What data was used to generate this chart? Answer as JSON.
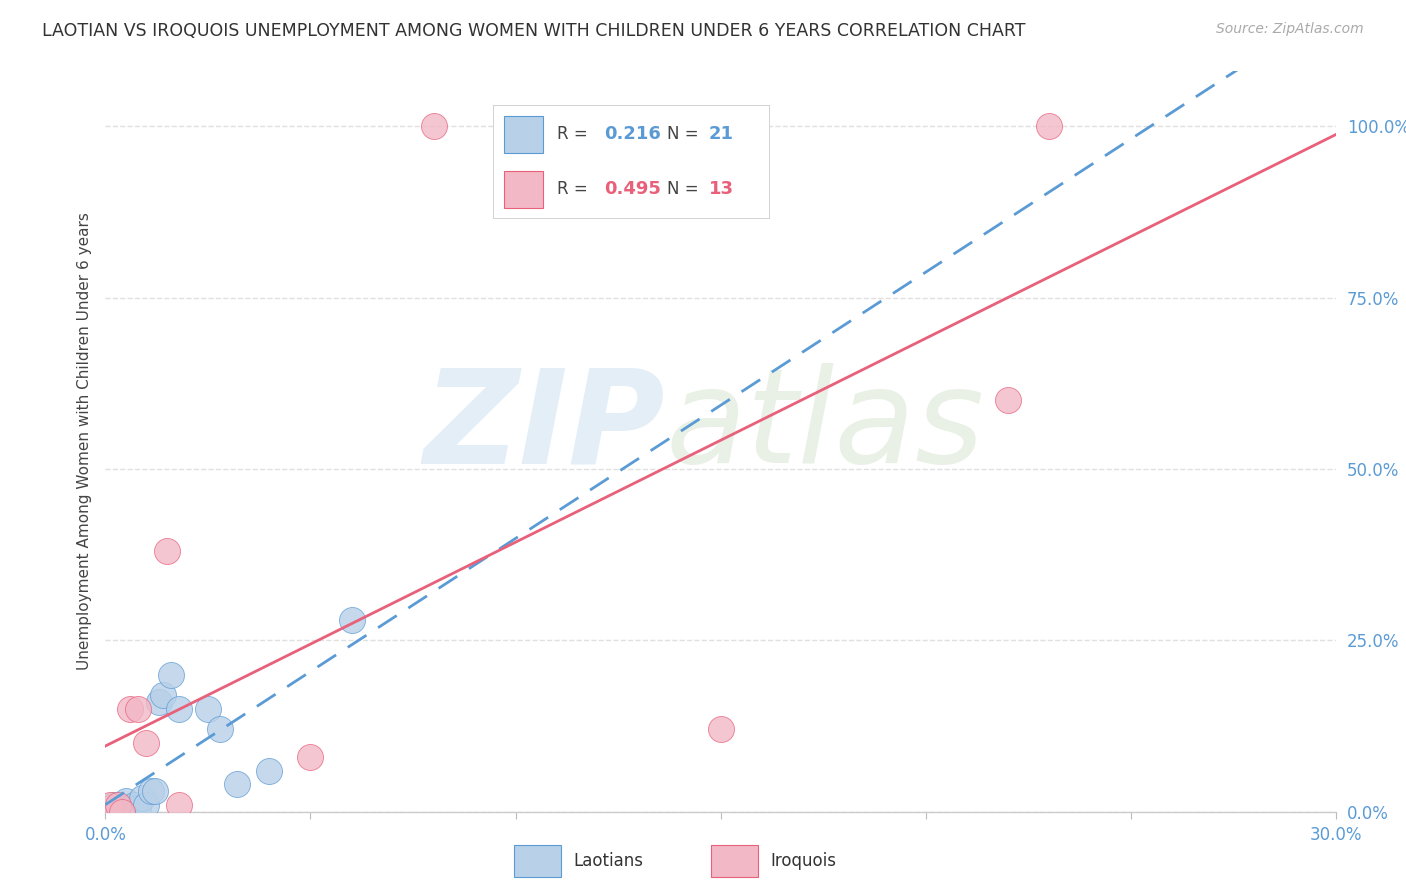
{
  "title": "LAOTIAN VS IROQUOIS UNEMPLOYMENT AMONG WOMEN WITH CHILDREN UNDER 6 YEARS CORRELATION CHART",
  "source": "Source: ZipAtlas.com",
  "ylabel": "Unemployment Among Women with Children Under 6 years",
  "xlim": [
    0.0,
    0.3
  ],
  "ylim": [
    0.0,
    1.08
  ],
  "xtick_vals": [
    0.0,
    0.05,
    0.1,
    0.15,
    0.2,
    0.25,
    0.3
  ],
  "ytick_vals": [
    0.0,
    0.25,
    0.5,
    0.75,
    1.0
  ],
  "ytick_labels": [
    "0.0%",
    "25.0%",
    "50.0%",
    "75.0%",
    "100.0%"
  ],
  "laotian_color": "#b8d0e8",
  "iroquois_color": "#f2b8c6",
  "laotian_line_color": "#5b9bd5",
  "iroquois_line_color": "#e8607a",
  "laotian_R": 0.216,
  "laotian_N": 21,
  "iroquois_R": 0.495,
  "iroquois_N": 13,
  "laotian_x": [
    0.001,
    0.002,
    0.003,
    0.004,
    0.005,
    0.006,
    0.007,
    0.008,
    0.009,
    0.01,
    0.011,
    0.012,
    0.013,
    0.014,
    0.016,
    0.018,
    0.025,
    0.028,
    0.032,
    0.04,
    0.06
  ],
  "laotian_y": [
    0.005,
    0.01,
    0.0,
    0.005,
    0.015,
    0.005,
    0.01,
    0.005,
    0.02,
    0.01,
    0.03,
    0.03,
    0.16,
    0.17,
    0.2,
    0.15,
    0.15,
    0.12,
    0.04,
    0.06,
    0.28
  ],
  "iroquois_x": [
    0.001,
    0.003,
    0.004,
    0.006,
    0.008,
    0.01,
    0.015,
    0.018,
    0.05,
    0.08,
    0.15,
    0.22,
    0.23
  ],
  "iroquois_y": [
    0.01,
    0.01,
    0.0,
    0.15,
    0.15,
    0.1,
    0.38,
    0.01,
    0.08,
    1.0,
    0.12,
    0.6,
    1.0
  ],
  "lao_trendline": [
    0.175,
    1.1
  ],
  "iro_trendline": [
    0.2,
    2.5
  ],
  "background_color": "#ffffff",
  "grid_color": "#e0e0e0"
}
